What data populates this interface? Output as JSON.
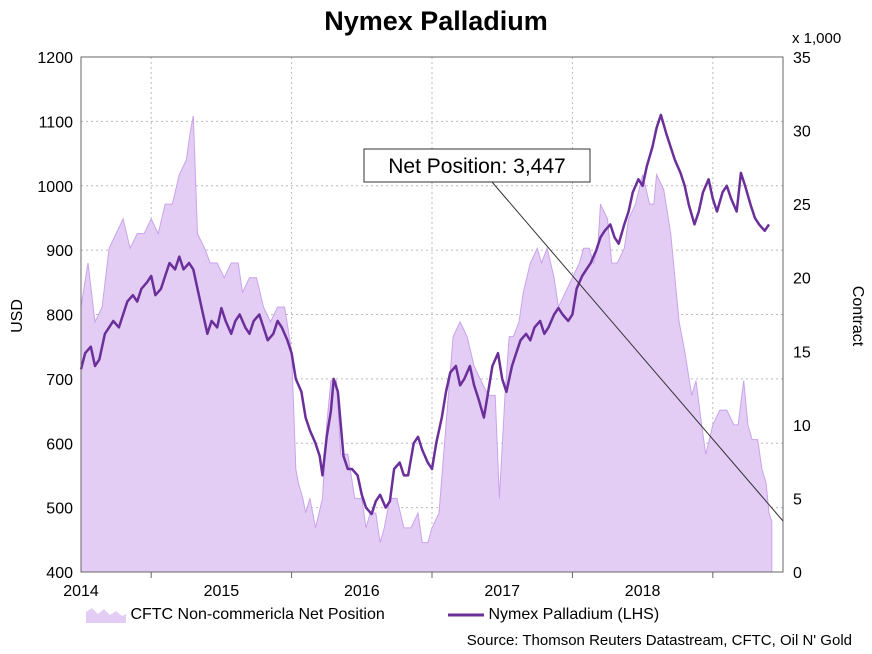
{
  "chart_data": {
    "type": "line",
    "title": "Nymex Palladium",
    "ylabel": "USD",
    "y2label": "Contract",
    "y2scale_note": "x 1,000",
    "ylim": [
      400,
      1200
    ],
    "y2lim": [
      0,
      35
    ],
    "yticks": [
      400,
      500,
      600,
      700,
      800,
      900,
      1000,
      1100,
      1200
    ],
    "y2ticks": [
      0,
      5,
      10,
      15,
      20,
      25,
      30,
      35
    ],
    "xlim": [
      2013.5,
      2018.5
    ],
    "xtick_labels": [
      "2014",
      "2015",
      "2016",
      "2017",
      "2018"
    ],
    "grid": true,
    "legend_position": "bottom",
    "annotation": "Net Position: 3,447",
    "source": "Source: Thomson Reuters Datastream, CFTC, Oil N' Gold",
    "series": [
      {
        "name": "CFTC Non-commericla Net Position",
        "kind": "area",
        "axis": "right",
        "color": "#e4cdf5",
        "points": [
          [
            2013.5,
            18
          ],
          [
            2013.55,
            21
          ],
          [
            2013.6,
            17
          ],
          [
            2013.65,
            18
          ],
          [
            2013.7,
            22
          ],
          [
            2013.75,
            23
          ],
          [
            2013.8,
            24
          ],
          [
            2013.85,
            22
          ],
          [
            2013.9,
            23
          ],
          [
            2013.95,
            23
          ],
          [
            2014.0,
            24
          ],
          [
            2014.05,
            23
          ],
          [
            2014.1,
            25
          ],
          [
            2014.15,
            25
          ],
          [
            2014.2,
            27
          ],
          [
            2014.25,
            28
          ],
          [
            2014.28,
            30
          ],
          [
            2014.3,
            31
          ],
          [
            2014.33,
            23
          ],
          [
            2014.38,
            22
          ],
          [
            2014.42,
            21
          ],
          [
            2014.47,
            21
          ],
          [
            2014.52,
            20
          ],
          [
            2014.57,
            21
          ],
          [
            2014.62,
            21
          ],
          [
            2014.65,
            19
          ],
          [
            2014.7,
            20
          ],
          [
            2014.75,
            20
          ],
          [
            2014.8,
            18
          ],
          [
            2014.85,
            17
          ],
          [
            2014.9,
            18
          ],
          [
            2014.95,
            18
          ],
          [
            2015.0,
            15
          ],
          [
            2015.03,
            7
          ],
          [
            2015.05,
            6
          ],
          [
            2015.08,
            5
          ],
          [
            2015.1,
            4
          ],
          [
            2015.13,
            5
          ],
          [
            2015.17,
            3
          ],
          [
            2015.22,
            5
          ],
          [
            2015.25,
            10
          ],
          [
            2015.28,
            13
          ],
          [
            2015.32,
            13
          ],
          [
            2015.35,
            8
          ],
          [
            2015.4,
            8
          ],
          [
            2015.45,
            5
          ],
          [
            2015.5,
            5
          ],
          [
            2015.53,
            3
          ],
          [
            2015.56,
            4
          ],
          [
            2015.6,
            4
          ],
          [
            2015.63,
            2
          ],
          [
            2015.66,
            3
          ],
          [
            2015.7,
            5
          ],
          [
            2015.75,
            5
          ],
          [
            2015.8,
            3
          ],
          [
            2015.85,
            3
          ],
          [
            2015.9,
            4
          ],
          [
            2015.93,
            2
          ],
          [
            2015.97,
            2
          ],
          [
            2016.0,
            3
          ],
          [
            2016.05,
            4
          ],
          [
            2016.1,
            10
          ],
          [
            2016.15,
            16
          ],
          [
            2016.2,
            17
          ],
          [
            2016.25,
            16
          ],
          [
            2016.3,
            14
          ],
          [
            2016.35,
            13
          ],
          [
            2016.4,
            12
          ],
          [
            2016.45,
            12
          ],
          [
            2016.48,
            5
          ],
          [
            2016.52,
            12
          ],
          [
            2016.55,
            16
          ],
          [
            2016.58,
            16
          ],
          [
            2016.62,
            17
          ],
          [
            2016.65,
            19
          ],
          [
            2016.7,
            21
          ],
          [
            2016.75,
            22
          ],
          [
            2016.78,
            21
          ],
          [
            2016.82,
            22
          ],
          [
            2016.87,
            20
          ],
          [
            2016.9,
            18
          ],
          [
            2016.95,
            19
          ],
          [
            2017.0,
            20
          ],
          [
            2017.05,
            21
          ],
          [
            2017.08,
            22
          ],
          [
            2017.12,
            22
          ],
          [
            2017.15,
            21
          ],
          [
            2017.18,
            22
          ],
          [
            2017.2,
            25
          ],
          [
            2017.25,
            24
          ],
          [
            2017.28,
            21
          ],
          [
            2017.32,
            21
          ],
          [
            2017.37,
            22
          ],
          [
            2017.4,
            24
          ],
          [
            2017.45,
            25
          ],
          [
            2017.5,
            27
          ],
          [
            2017.55,
            25
          ],
          [
            2017.58,
            25
          ],
          [
            2017.6,
            27
          ],
          [
            2017.65,
            26
          ],
          [
            2017.7,
            23
          ],
          [
            2017.73,
            20
          ],
          [
            2017.76,
            17
          ],
          [
            2017.8,
            15
          ],
          [
            2017.85,
            12
          ],
          [
            2017.88,
            13
          ],
          [
            2017.92,
            10
          ],
          [
            2017.95,
            8
          ],
          [
            2018.0,
            10
          ],
          [
            2018.05,
            11
          ],
          [
            2018.1,
            11
          ],
          [
            2018.15,
            10
          ],
          [
            2018.18,
            10
          ],
          [
            2018.22,
            13
          ],
          [
            2018.25,
            10
          ],
          [
            2018.28,
            9
          ],
          [
            2018.32,
            9
          ],
          [
            2018.35,
            7
          ],
          [
            2018.38,
            6
          ],
          [
            2018.4,
            4
          ],
          [
            2018.42,
            3.447
          ]
        ]
      },
      {
        "name": "Nymex Palladium (LHS)",
        "kind": "line",
        "axis": "left",
        "color": "#6b2f9a",
        "points": [
          [
            2013.5,
            715
          ],
          [
            2013.53,
            740
          ],
          [
            2013.57,
            750
          ],
          [
            2013.6,
            720
          ],
          [
            2013.63,
            730
          ],
          [
            2013.67,
            770
          ],
          [
            2013.7,
            780
          ],
          [
            2013.73,
            790
          ],
          [
            2013.77,
            780
          ],
          [
            2013.8,
            800
          ],
          [
            2013.83,
            820
          ],
          [
            2013.87,
            830
          ],
          [
            2013.9,
            820
          ],
          [
            2013.93,
            840
          ],
          [
            2013.97,
            850
          ],
          [
            2014.0,
            860
          ],
          [
            2014.03,
            830
          ],
          [
            2014.07,
            840
          ],
          [
            2014.1,
            860
          ],
          [
            2014.13,
            880
          ],
          [
            2014.17,
            870
          ],
          [
            2014.2,
            890
          ],
          [
            2014.23,
            870
          ],
          [
            2014.27,
            880
          ],
          [
            2014.3,
            870
          ],
          [
            2014.33,
            840
          ],
          [
            2014.37,
            800
          ],
          [
            2014.4,
            770
          ],
          [
            2014.43,
            790
          ],
          [
            2014.47,
            780
          ],
          [
            2014.5,
            810
          ],
          [
            2014.53,
            790
          ],
          [
            2014.57,
            770
          ],
          [
            2014.6,
            790
          ],
          [
            2014.63,
            800
          ],
          [
            2014.67,
            780
          ],
          [
            2014.7,
            770
          ],
          [
            2014.73,
            790
          ],
          [
            2014.77,
            800
          ],
          [
            2014.8,
            780
          ],
          [
            2014.83,
            760
          ],
          [
            2014.87,
            770
          ],
          [
            2014.9,
            790
          ],
          [
            2014.93,
            780
          ],
          [
            2014.97,
            760
          ],
          [
            2015.0,
            740
          ],
          [
            2015.03,
            700
          ],
          [
            2015.07,
            680
          ],
          [
            2015.1,
            640
          ],
          [
            2015.13,
            620
          ],
          [
            2015.17,
            600
          ],
          [
            2015.2,
            580
          ],
          [
            2015.22,
            550
          ],
          [
            2015.25,
            610
          ],
          [
            2015.28,
            650
          ],
          [
            2015.3,
            700
          ],
          [
            2015.33,
            680
          ],
          [
            2015.37,
            580
          ],
          [
            2015.4,
            560
          ],
          [
            2015.43,
            560
          ],
          [
            2015.47,
            550
          ],
          [
            2015.5,
            520
          ],
          [
            2015.53,
            500
          ],
          [
            2015.57,
            490
          ],
          [
            2015.6,
            510
          ],
          [
            2015.63,
            520
          ],
          [
            2015.67,
            500
          ],
          [
            2015.7,
            510
          ],
          [
            2015.73,
            560
          ],
          [
            2015.77,
            570
          ],
          [
            2015.8,
            550
          ],
          [
            2015.83,
            550
          ],
          [
            2015.87,
            600
          ],
          [
            2015.9,
            610
          ],
          [
            2015.93,
            590
          ],
          [
            2015.97,
            570
          ],
          [
            2016.0,
            560
          ],
          [
            2016.03,
            600
          ],
          [
            2016.07,
            640
          ],
          [
            2016.1,
            680
          ],
          [
            2016.13,
            710
          ],
          [
            2016.17,
            720
          ],
          [
            2016.2,
            690
          ],
          [
            2016.23,
            700
          ],
          [
            2016.27,
            720
          ],
          [
            2016.3,
            690
          ],
          [
            2016.33,
            670
          ],
          [
            2016.37,
            640
          ],
          [
            2016.4,
            680
          ],
          [
            2016.43,
            720
          ],
          [
            2016.47,
            740
          ],
          [
            2016.5,
            700
          ],
          [
            2016.53,
            680
          ],
          [
            2016.57,
            720
          ],
          [
            2016.6,
            740
          ],
          [
            2016.63,
            760
          ],
          [
            2016.67,
            770
          ],
          [
            2016.7,
            760
          ],
          [
            2016.73,
            780
          ],
          [
            2016.77,
            790
          ],
          [
            2016.8,
            770
          ],
          [
            2016.83,
            780
          ],
          [
            2016.87,
            800
          ],
          [
            2016.9,
            810
          ],
          [
            2016.93,
            800
          ],
          [
            2016.97,
            790
          ],
          [
            2017.0,
            800
          ],
          [
            2017.03,
            840
          ],
          [
            2017.07,
            860
          ],
          [
            2017.1,
            870
          ],
          [
            2017.13,
            880
          ],
          [
            2017.17,
            900
          ],
          [
            2017.2,
            920
          ],
          [
            2017.23,
            930
          ],
          [
            2017.27,
            940
          ],
          [
            2017.3,
            920
          ],
          [
            2017.33,
            910
          ],
          [
            2017.37,
            940
          ],
          [
            2017.4,
            960
          ],
          [
            2017.43,
            990
          ],
          [
            2017.47,
            1010
          ],
          [
            2017.5,
            1000
          ],
          [
            2017.53,
            1030
          ],
          [
            2017.57,
            1060
          ],
          [
            2017.6,
            1090
          ],
          [
            2017.63,
            1110
          ],
          [
            2017.67,
            1080
          ],
          [
            2017.7,
            1060
          ],
          [
            2017.73,
            1040
          ],
          [
            2017.77,
            1020
          ],
          [
            2017.8,
            1000
          ],
          [
            2017.83,
            970
          ],
          [
            2017.87,
            940
          ],
          [
            2017.9,
            960
          ],
          [
            2017.93,
            990
          ],
          [
            2017.97,
            1010
          ],
          [
            2018.0,
            980
          ],
          [
            2018.03,
            960
          ],
          [
            2018.07,
            990
          ],
          [
            2018.1,
            1000
          ],
          [
            2018.13,
            980
          ],
          [
            2018.17,
            960
          ],
          [
            2018.2,
            1020
          ],
          [
            2018.23,
            1000
          ],
          [
            2018.27,
            970
          ],
          [
            2018.3,
            950
          ],
          [
            2018.33,
            940
          ],
          [
            2018.37,
            930
          ],
          [
            2018.4,
            940
          ]
        ]
      }
    ]
  }
}
